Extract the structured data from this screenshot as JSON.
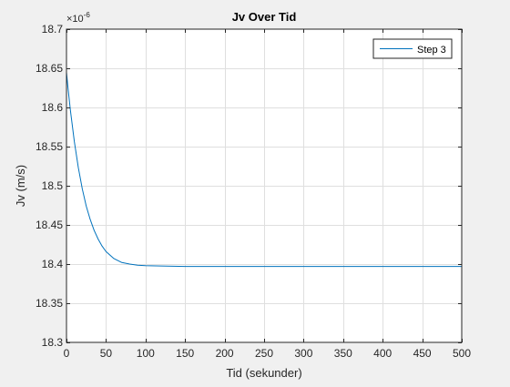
{
  "chart_data": {
    "type": "line",
    "title": "Jv Over Tid",
    "xlabel": "Tid (sekunder)",
    "ylabel": "Jv (m/s)",
    "y_exponent_label": "×10",
    "y_exponent_power": "-6",
    "xlim": [
      0,
      500
    ],
    "ylim": [
      18.3,
      18.7
    ],
    "x_ticks": [
      0,
      50,
      100,
      150,
      200,
      250,
      300,
      350,
      400,
      450,
      500
    ],
    "x_tick_labels": [
      "0",
      "50",
      "100",
      "150",
      "200",
      "250",
      "300",
      "350",
      "400",
      "450",
      "500"
    ],
    "y_ticks": [
      18.3,
      18.35,
      18.4,
      18.45,
      18.5,
      18.55,
      18.6,
      18.65,
      18.7
    ],
    "y_tick_labels": [
      "18.3",
      "18.35",
      "18.4",
      "18.45",
      "18.5",
      "18.55",
      "18.6",
      "18.65",
      "18.7"
    ],
    "grid": true,
    "legend_position": "top-right",
    "series": [
      {
        "name": "Step 3",
        "color": "#0072bd",
        "x": [
          0,
          0,
          2,
          5,
          10,
          15,
          20,
          25,
          30,
          35,
          40,
          45,
          50,
          60,
          70,
          80,
          90,
          100,
          120,
          150,
          200,
          300,
          400,
          500
        ],
        "y": [
          18.3,
          18.645,
          18.624,
          18.596,
          18.556,
          18.523,
          18.496,
          18.474,
          18.457,
          18.443,
          18.432,
          18.423,
          18.416,
          18.407,
          18.402,
          18.4,
          18.3985,
          18.398,
          18.3975,
          18.397,
          18.397,
          18.397,
          18.397,
          18.397
        ]
      }
    ]
  }
}
